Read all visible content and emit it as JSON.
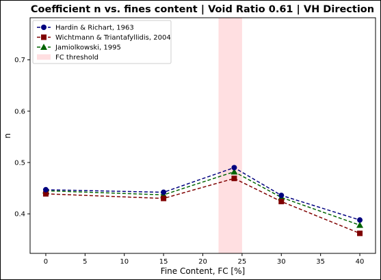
{
  "chart_data": {
    "type": "line",
    "title": "Coefficient n vs. fines content | Void Ratio 0.61 | VH Direction",
    "xlabel": "Fine Content, FC [%]",
    "ylabel": "n",
    "xlim": [
      -2,
      42
    ],
    "ylim": [
      0.323,
      0.782
    ],
    "x_ticks": [
      0,
      5,
      10,
      15,
      20,
      25,
      30,
      35,
      40
    ],
    "y_ticks": [
      0.4,
      0.5,
      0.6,
      0.7
    ],
    "grid": false,
    "legend_position": "top-left",
    "x": [
      0,
      15,
      24,
      30,
      40
    ],
    "series": [
      {
        "name": "Hardin & Richart, 1963",
        "values": [
          0.447,
          0.442,
          0.49,
          0.436,
          0.388
        ],
        "color": "#00007f",
        "marker": "circle"
      },
      {
        "name": "Wichtmann & Triantafyllidis, 2004",
        "values": [
          0.439,
          0.43,
          0.469,
          0.424,
          0.362
        ],
        "color": "#7f0000",
        "marker": "square"
      },
      {
        "name": "Jamiolkowski, 1995",
        "values": [
          0.445,
          0.437,
          0.482,
          0.432,
          0.378
        ],
        "color": "#006400",
        "marker": "triangle"
      }
    ],
    "threshold_band": {
      "name": "FC threshold",
      "x_range": [
        22,
        25
      ],
      "color": "#ffdfe1"
    }
  }
}
